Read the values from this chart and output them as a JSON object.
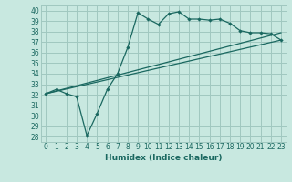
{
  "title": "",
  "xlabel": "Humidex (Indice chaleur)",
  "ylabel": "",
  "background_color": "#c8e8e0",
  "grid_color": "#a0c8c0",
  "line_color": "#1a6860",
  "xlim": [
    -0.5,
    23.5
  ],
  "ylim": [
    27.5,
    40.5
  ],
  "yticks": [
    28,
    29,
    30,
    31,
    32,
    33,
    34,
    35,
    36,
    37,
    38,
    39,
    40
  ],
  "xticks": [
    0,
    1,
    2,
    3,
    4,
    5,
    6,
    7,
    8,
    9,
    10,
    11,
    12,
    13,
    14,
    15,
    16,
    17,
    18,
    19,
    20,
    21,
    22,
    23
  ],
  "line1_x": [
    0,
    1,
    2,
    3,
    4,
    5,
    6,
    7,
    8,
    9,
    10,
    11,
    12,
    13,
    14,
    15,
    16,
    17,
    18,
    19,
    20,
    21,
    22,
    23
  ],
  "line1_y": [
    32.1,
    32.5,
    32.1,
    31.8,
    28.1,
    30.2,
    32.5,
    34.0,
    36.5,
    39.8,
    39.2,
    38.7,
    39.7,
    39.9,
    39.2,
    39.2,
    39.1,
    39.2,
    38.8,
    38.1,
    37.9,
    37.9,
    37.8,
    37.2
  ],
  "line2_x": [
    0,
    23
  ],
  "line2_y": [
    32.1,
    37.2
  ],
  "line3_x": [
    0,
    23
  ],
  "line3_y": [
    32.1,
    37.9
  ]
}
